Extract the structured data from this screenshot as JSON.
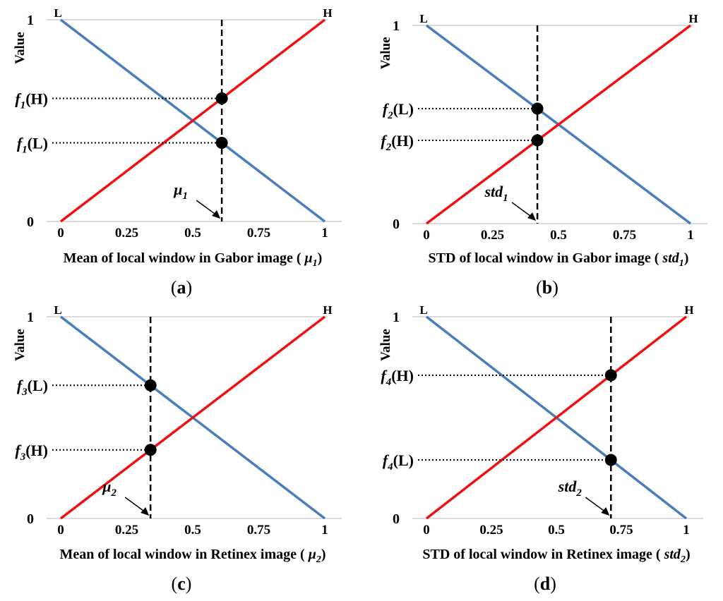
{
  "chart_data": [
    {
      "type": "line",
      "panel_label": "a",
      "xlabel": "Mean of local window in Gabor image (",
      "xlabel_sym": "μ",
      "xlabel_sub": "1",
      "ylabel": "Value",
      "xlim": [
        0,
        1
      ],
      "ylim": [
        0,
        1
      ],
      "x_ticks": [
        "0",
        "0.25",
        "0.5",
        "0.75",
        "1"
      ],
      "y_ticks": [
        "0",
        "1"
      ],
      "line_labels": {
        "low": "L",
        "high": "H"
      },
      "series": [
        {
          "values": [
            [
              0,
              1
            ],
            [
              1,
              0
            ]
          ],
          "color": "#4a7ebb"
        },
        {
          "values": [
            [
              0,
              0
            ],
            [
              1,
              1
            ]
          ],
          "color": "#ee1111"
        }
      ],
      "marker_x": 0.61,
      "marker_label": {
        "sym": "μ",
        "sub": "1"
      },
      "points": [
        {
          "y": 0.61,
          "label": {
            "f": "f",
            "sub": "1",
            "tag": "(H)"
          }
        },
        {
          "y": 0.39,
          "label": {
            "f": "f",
            "sub": "1",
            "tag": "(L)"
          }
        }
      ]
    },
    {
      "type": "line",
      "panel_label": "b",
      "xlabel": "STD of local window in Gabor image (",
      "xlabel_sym": "std",
      "xlabel_sub": "1",
      "ylabel": "Value",
      "xlim": [
        0,
        1
      ],
      "ylim": [
        0,
        1
      ],
      "x_ticks": [
        "0",
        "0.25",
        "0.5",
        "0.75",
        "1"
      ],
      "y_ticks": [
        "0",
        "1"
      ],
      "line_labels": {
        "low": "L",
        "high": "H"
      },
      "series": [
        {
          "values": [
            [
              0,
              1
            ],
            [
              1,
              0
            ]
          ],
          "color": "#4a7ebb"
        },
        {
          "values": [
            [
              0,
              0
            ],
            [
              1,
              1
            ]
          ],
          "color": "#ee1111"
        }
      ],
      "marker_x": 0.42,
      "marker_label": {
        "sym": "std",
        "sub": "1"
      },
      "points": [
        {
          "y": 0.58,
          "label": {
            "f": "f",
            "sub": "2",
            "tag": "(L)"
          }
        },
        {
          "y": 0.42,
          "label": {
            "f": "f",
            "sub": "2",
            "tag": "(H)"
          }
        }
      ]
    },
    {
      "type": "line",
      "panel_label": "c",
      "xlabel": "Mean of local window in Retinex image (",
      "xlabel_sym": "μ",
      "xlabel_sub": "2",
      "ylabel": "Value",
      "xlim": [
        0,
        1
      ],
      "ylim": [
        0,
        1
      ],
      "x_ticks": [
        "0",
        "0.25",
        "0.5",
        "0.75",
        "1"
      ],
      "y_ticks": [
        "0",
        "1"
      ],
      "line_labels": {
        "low": "L",
        "high": "H"
      },
      "series": [
        {
          "values": [
            [
              0,
              1
            ],
            [
              1,
              0
            ]
          ],
          "color": "#4a7ebb"
        },
        {
          "values": [
            [
              0,
              0
            ],
            [
              1,
              1
            ]
          ],
          "color": "#ee1111"
        }
      ],
      "marker_x": 0.34,
      "marker_label": {
        "sym": "μ",
        "sub": "2"
      },
      "points": [
        {
          "y": 0.66,
          "label": {
            "f": "f",
            "sub": "3",
            "tag": "(L)"
          }
        },
        {
          "y": 0.34,
          "label": {
            "f": "f",
            "sub": "3",
            "tag": "(H)"
          }
        }
      ]
    },
    {
      "type": "line",
      "panel_label": "d",
      "xlabel": "STD of local window in Retinex image (",
      "xlabel_sym": "std",
      "xlabel_sub": "2",
      "ylabel": "Value",
      "xlim": [
        0,
        1
      ],
      "ylim": [
        0,
        1
      ],
      "x_ticks": [
        "0",
        "0.25",
        "0.5",
        "0.75",
        "1"
      ],
      "y_ticks": [
        "0",
        "1"
      ],
      "line_labels": {
        "low": "L",
        "high": "H"
      },
      "series": [
        {
          "values": [
            [
              0,
              1
            ],
            [
              1,
              0
            ]
          ],
          "color": "#4a7ebb"
        },
        {
          "values": [
            [
              0,
              0
            ],
            [
              1,
              1
            ]
          ],
          "color": "#ee1111"
        }
      ],
      "marker_x": 0.71,
      "marker_label": {
        "sym": "std",
        "sub": "2"
      },
      "points": [
        {
          "y": 0.71,
          "label": {
            "f": "f",
            "sub": "4",
            "tag": "(H)"
          }
        },
        {
          "y": 0.29,
          "label": {
            "f": "f",
            "sub": "4",
            "tag": "(L)"
          }
        }
      ]
    }
  ]
}
